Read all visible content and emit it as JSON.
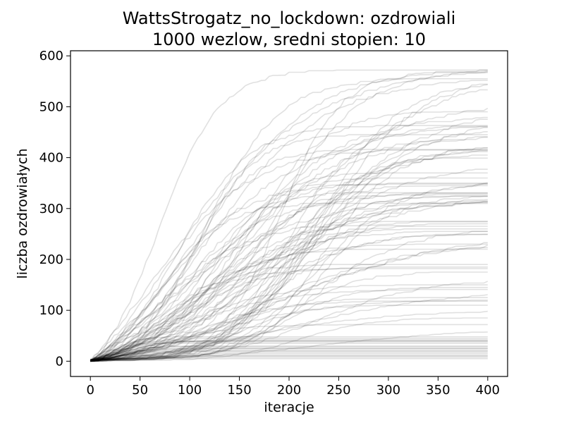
{
  "chart_data": {
    "type": "line",
    "title": "WattsStrogatz_no_lockdown: ozdrowiali",
    "subtitle": "1000 wezlow, sredni stopien: 10",
    "xlabel": "iteracje",
    "ylabel": "liczba ozdrowiałych",
    "xlim": [
      -20,
      420
    ],
    "ylim": [
      -30,
      610
    ],
    "xticks": [
      0,
      50,
      100,
      150,
      200,
      250,
      300,
      350,
      400
    ],
    "yticks": [
      0,
      100,
      200,
      300,
      400,
      500,
      600
    ],
    "grid": false,
    "legend": "none",
    "line_color": "#000000",
    "line_opacity": 0.12,
    "series_count": 100,
    "series_note_final_values_sampled": [
      5,
      8,
      10,
      12,
      15,
      18,
      20,
      22,
      25,
      28,
      30,
      35,
      40,
      42,
      45,
      65,
      72,
      85,
      100,
      110,
      120,
      125,
      140,
      145,
      150,
      160,
      175,
      185,
      190,
      220,
      230,
      240,
      250,
      255,
      260,
      265,
      270,
      275,
      310,
      320,
      325,
      330,
      345,
      348,
      350,
      360,
      370,
      395,
      405,
      415,
      420,
      425,
      440,
      445,
      465,
      470,
      480,
      490,
      500,
      510,
      555,
      570,
      575
    ]
  }
}
